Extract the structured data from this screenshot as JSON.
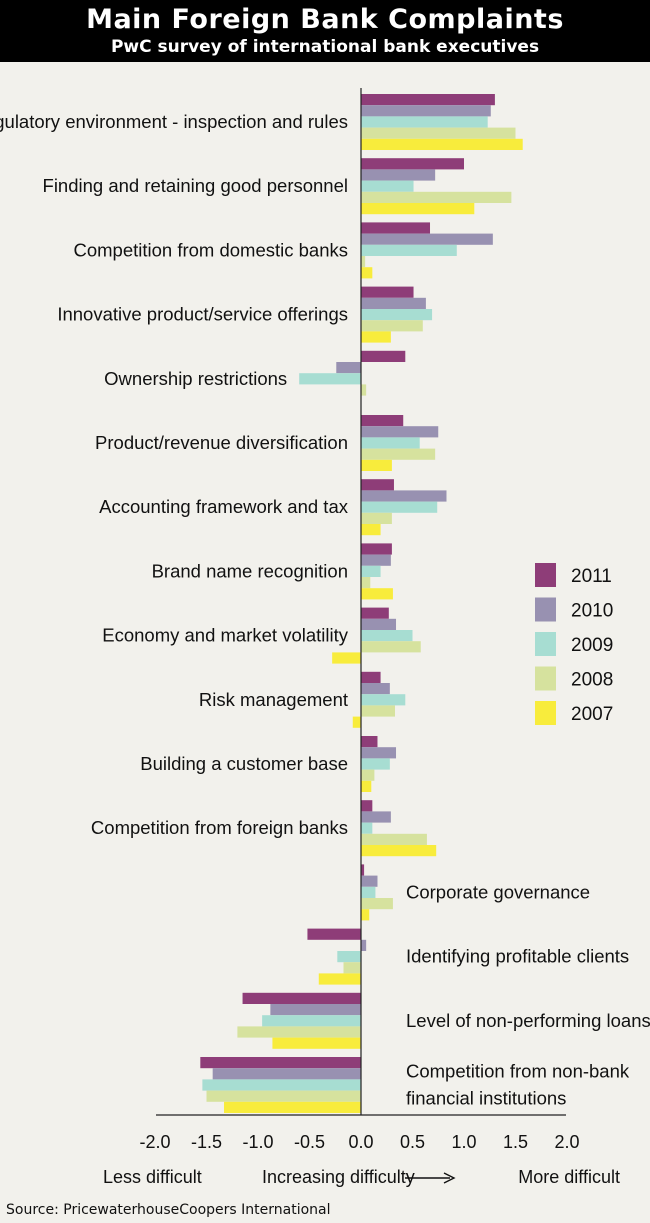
{
  "header": {
    "title": "Main Foreign Bank Complaints",
    "subtitle": "PwC survey of international bank executives"
  },
  "footer": {
    "source": "Source: PricewaterhouseCoopers International"
  },
  "colors": {
    "2011": "#8e3d78",
    "2010": "#9891b1",
    "2009": "#a7ddd2",
    "2008": "#d6e29e",
    "2007": "#f8ec3c",
    "background": "#f2f1ec",
    "axis": "#222222"
  },
  "chart_data": {
    "type": "bar",
    "orientation": "horizontal",
    "title": "Main Foreign Bank Complaints",
    "subtitle": "PwC survey of international bank executives",
    "categories": [
      "Regulatory environment - inspection and rules",
      "Finding and retaining good personnel",
      "Competition from domestic banks",
      "Innovative product/service offerings",
      "Ownership restrictions",
      "Product/revenue diversification",
      "Accounting framework and tax",
      "Brand name recognition",
      "Economy and market volatility",
      "Risk management",
      "Building a customer base",
      "Competition from foreign banks",
      "Corporate governance",
      "Identifying profitable clients",
      "Level of non-performing loans",
      [
        "Competition from non-bank",
        "financial institutions"
      ]
    ],
    "series": [
      {
        "name": "2011",
        "values": [
          1.3,
          1.0,
          0.67,
          0.51,
          0.43,
          0.41,
          0.32,
          0.3,
          0.27,
          0.19,
          0.16,
          0.11,
          0.03,
          -0.52,
          -1.15,
          -1.56
        ]
      },
      {
        "name": "2010",
        "values": [
          1.26,
          0.72,
          1.28,
          0.63,
          -0.24,
          0.75,
          0.83,
          0.29,
          0.34,
          0.28,
          0.34,
          0.29,
          0.16,
          0.05,
          -0.88,
          -1.44
        ]
      },
      {
        "name": "2009",
        "values": [
          1.23,
          0.51,
          0.93,
          0.69,
          -0.6,
          0.57,
          0.74,
          0.19,
          0.5,
          0.43,
          0.28,
          0.11,
          0.14,
          -0.23,
          -0.96,
          -1.54
        ]
      },
      {
        "name": "2008",
        "values": [
          1.5,
          1.46,
          0.04,
          0.6,
          0.05,
          0.72,
          0.3,
          0.09,
          0.58,
          0.33,
          0.13,
          0.64,
          0.31,
          -0.17,
          -1.2,
          -1.5
        ]
      },
      {
        "name": "2007",
        "values": [
          1.57,
          1.1,
          0.11,
          0.29,
          0.0,
          0.3,
          0.19,
          0.31,
          -0.28,
          -0.08,
          0.1,
          0.73,
          0.08,
          -0.41,
          -0.86,
          -1.33
        ]
      }
    ],
    "x_ticks": [
      "-2.0",
      "-1.5",
      "-1.0",
      "-0.5",
      "0.0",
      "0.5",
      "1.0",
      "1.5",
      "2.0"
    ],
    "xlim": [
      -2.0,
      2.0
    ],
    "x_axis_labels": {
      "left": "Less difficult",
      "center": "Increasing difficulty",
      "right": "More difficult"
    },
    "legend": {
      "placement": "right",
      "entries": [
        "2011",
        "2010",
        "2009",
        "2008",
        "2007"
      ]
    },
    "grid": false
  }
}
